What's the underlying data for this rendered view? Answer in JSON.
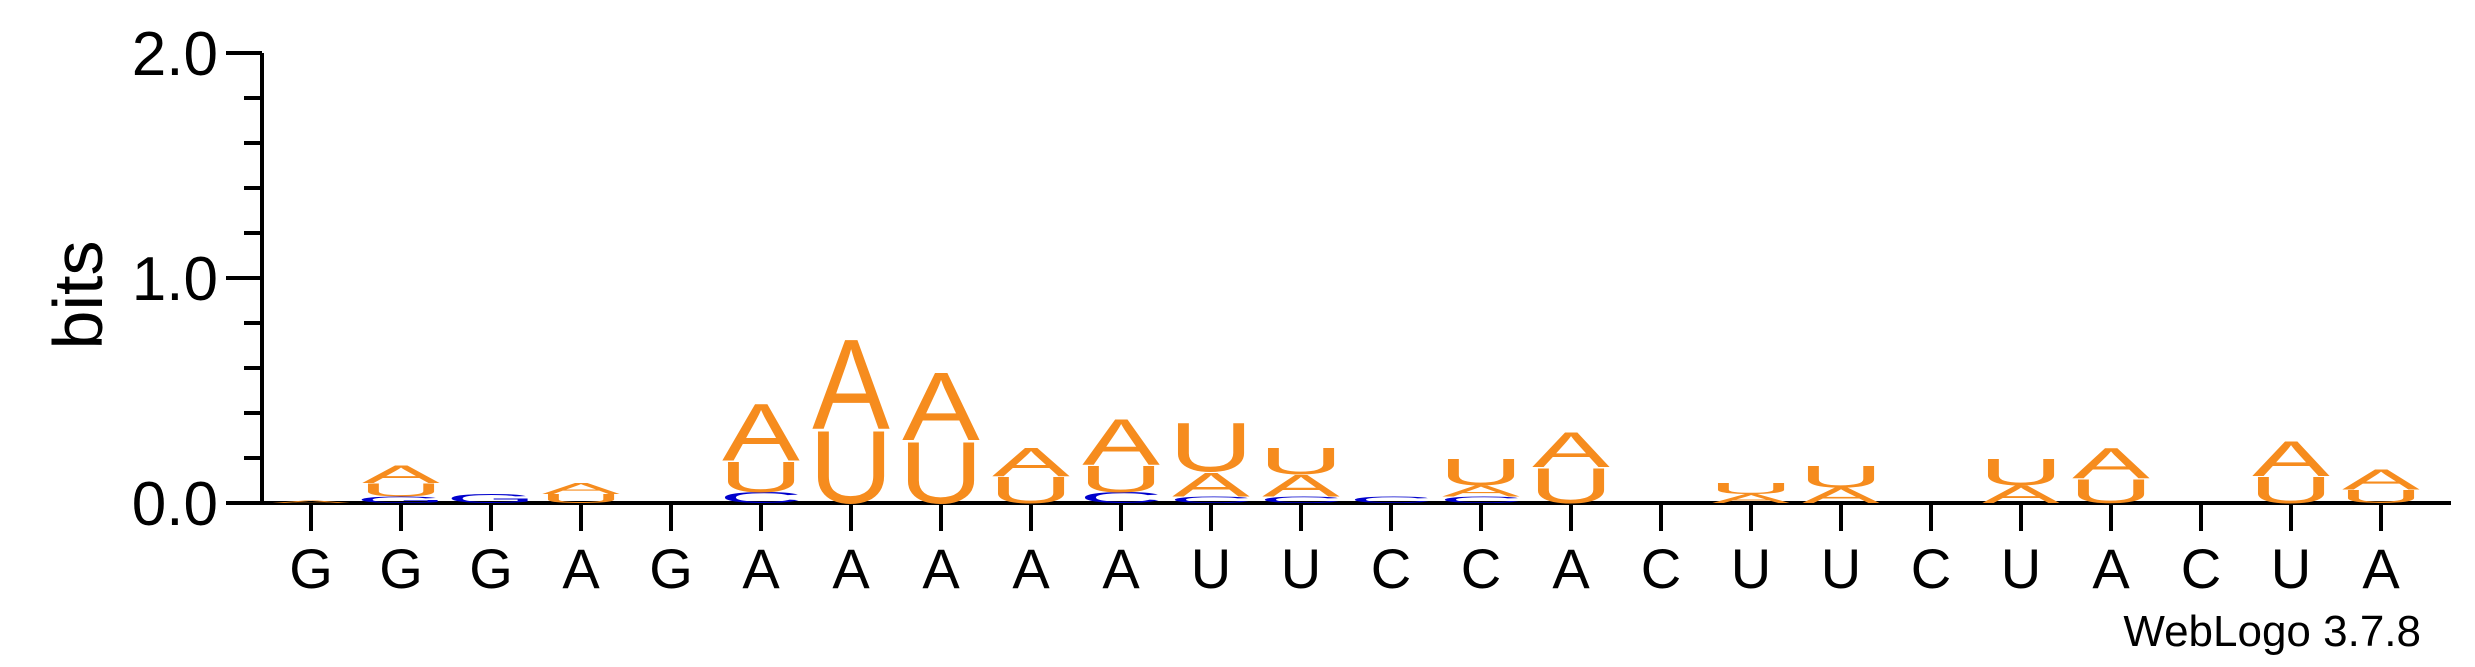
{
  "chart_data": {
    "type": "sequence-logo",
    "ylabel": "bits",
    "ylim": [
      0,
      2.0
    ],
    "yticks": [
      "0.0",
      "1.0",
      "2.0"
    ],
    "consensus": [
      "G",
      "G",
      "G",
      "A",
      "G",
      "A",
      "A",
      "A",
      "A",
      "A",
      "U",
      "U",
      "C",
      "C",
      "A",
      "C",
      "U",
      "U",
      "C",
      "U",
      "A",
      "C",
      "U",
      "A"
    ],
    "colors": {
      "A": "#f68c1e",
      "U": "#f68c1e",
      "C": "#0000cc",
      "G": "#0000cc"
    },
    "columns": [
      {
        "pos": 1,
        "stack": [
          {
            "letter": "A",
            "bits": 0.01
          }
        ]
      },
      {
        "pos": 2,
        "stack": [
          {
            "letter": "G",
            "bits": 0.03
          },
          {
            "letter": "U",
            "bits": 0.06
          },
          {
            "letter": "A",
            "bits": 0.08
          }
        ]
      },
      {
        "pos": 3,
        "stack": [
          {
            "letter": "G",
            "bits": 0.04
          }
        ]
      },
      {
        "pos": 4,
        "stack": [
          {
            "letter": "U",
            "bits": 0.04
          },
          {
            "letter": "A",
            "bits": 0.05
          }
        ]
      },
      {
        "pos": 5,
        "stack": []
      },
      {
        "pos": 6,
        "stack": [
          {
            "letter": "C",
            "bits": 0.05
          },
          {
            "letter": "U",
            "bits": 0.14
          },
          {
            "letter": "A",
            "bits": 0.26
          }
        ]
      },
      {
        "pos": 7,
        "stack": [
          {
            "letter": "U",
            "bits": 0.33
          },
          {
            "letter": "A",
            "bits": 0.41
          }
        ]
      },
      {
        "pos": 8,
        "stack": [
          {
            "letter": "U",
            "bits": 0.28
          },
          {
            "letter": "A",
            "bits": 0.31
          }
        ]
      },
      {
        "pos": 9,
        "stack": [
          {
            "letter": "U",
            "bits": 0.12
          },
          {
            "letter": "A",
            "bits": 0.13
          }
        ]
      },
      {
        "pos": 10,
        "stack": [
          {
            "letter": "C",
            "bits": 0.05
          },
          {
            "letter": "U",
            "bits": 0.12
          },
          {
            "letter": "A",
            "bits": 0.21
          }
        ]
      },
      {
        "pos": 11,
        "stack": [
          {
            "letter": "C",
            "bits": 0.03
          },
          {
            "letter": "A",
            "bits": 0.11
          },
          {
            "letter": "U",
            "bits": 0.22
          }
        ]
      },
      {
        "pos": 12,
        "stack": [
          {
            "letter": "C",
            "bits": 0.03
          },
          {
            "letter": "A",
            "bits": 0.1
          },
          {
            "letter": "U",
            "bits": 0.12
          }
        ]
      },
      {
        "pos": 13,
        "stack": [
          {
            "letter": "C",
            "bits": 0.03
          }
        ]
      },
      {
        "pos": 14,
        "stack": [
          {
            "letter": "C",
            "bits": 0.03
          },
          {
            "letter": "A",
            "bits": 0.05
          },
          {
            "letter": "U",
            "bits": 0.12
          }
        ]
      },
      {
        "pos": 15,
        "stack": [
          {
            "letter": "U",
            "bits": 0.16
          },
          {
            "letter": "A",
            "bits": 0.16
          }
        ]
      },
      {
        "pos": 16,
        "stack": []
      },
      {
        "pos": 17,
        "stack": [
          {
            "letter": "A",
            "bits": 0.04
          },
          {
            "letter": "U",
            "bits": 0.05
          }
        ]
      },
      {
        "pos": 18,
        "stack": [
          {
            "letter": "A",
            "bits": 0.07
          },
          {
            "letter": "U",
            "bits": 0.1
          }
        ]
      },
      {
        "pos": 19,
        "stack": []
      },
      {
        "pos": 20,
        "stack": [
          {
            "letter": "A",
            "bits": 0.08
          },
          {
            "letter": "U",
            "bits": 0.12
          }
        ]
      },
      {
        "pos": 21,
        "stack": [
          {
            "letter": "U",
            "bits": 0.11
          },
          {
            "letter": "A",
            "bits": 0.14
          }
        ]
      },
      {
        "pos": 22,
        "stack": []
      },
      {
        "pos": 23,
        "stack": [
          {
            "letter": "U",
            "bits": 0.12
          },
          {
            "letter": "A",
            "bits": 0.16
          }
        ]
      },
      {
        "pos": 24,
        "stack": [
          {
            "letter": "U",
            "bits": 0.06
          },
          {
            "letter": "A",
            "bits": 0.09
          }
        ]
      }
    ],
    "grid": false,
    "credit": "WebLogo 3.7.8"
  }
}
